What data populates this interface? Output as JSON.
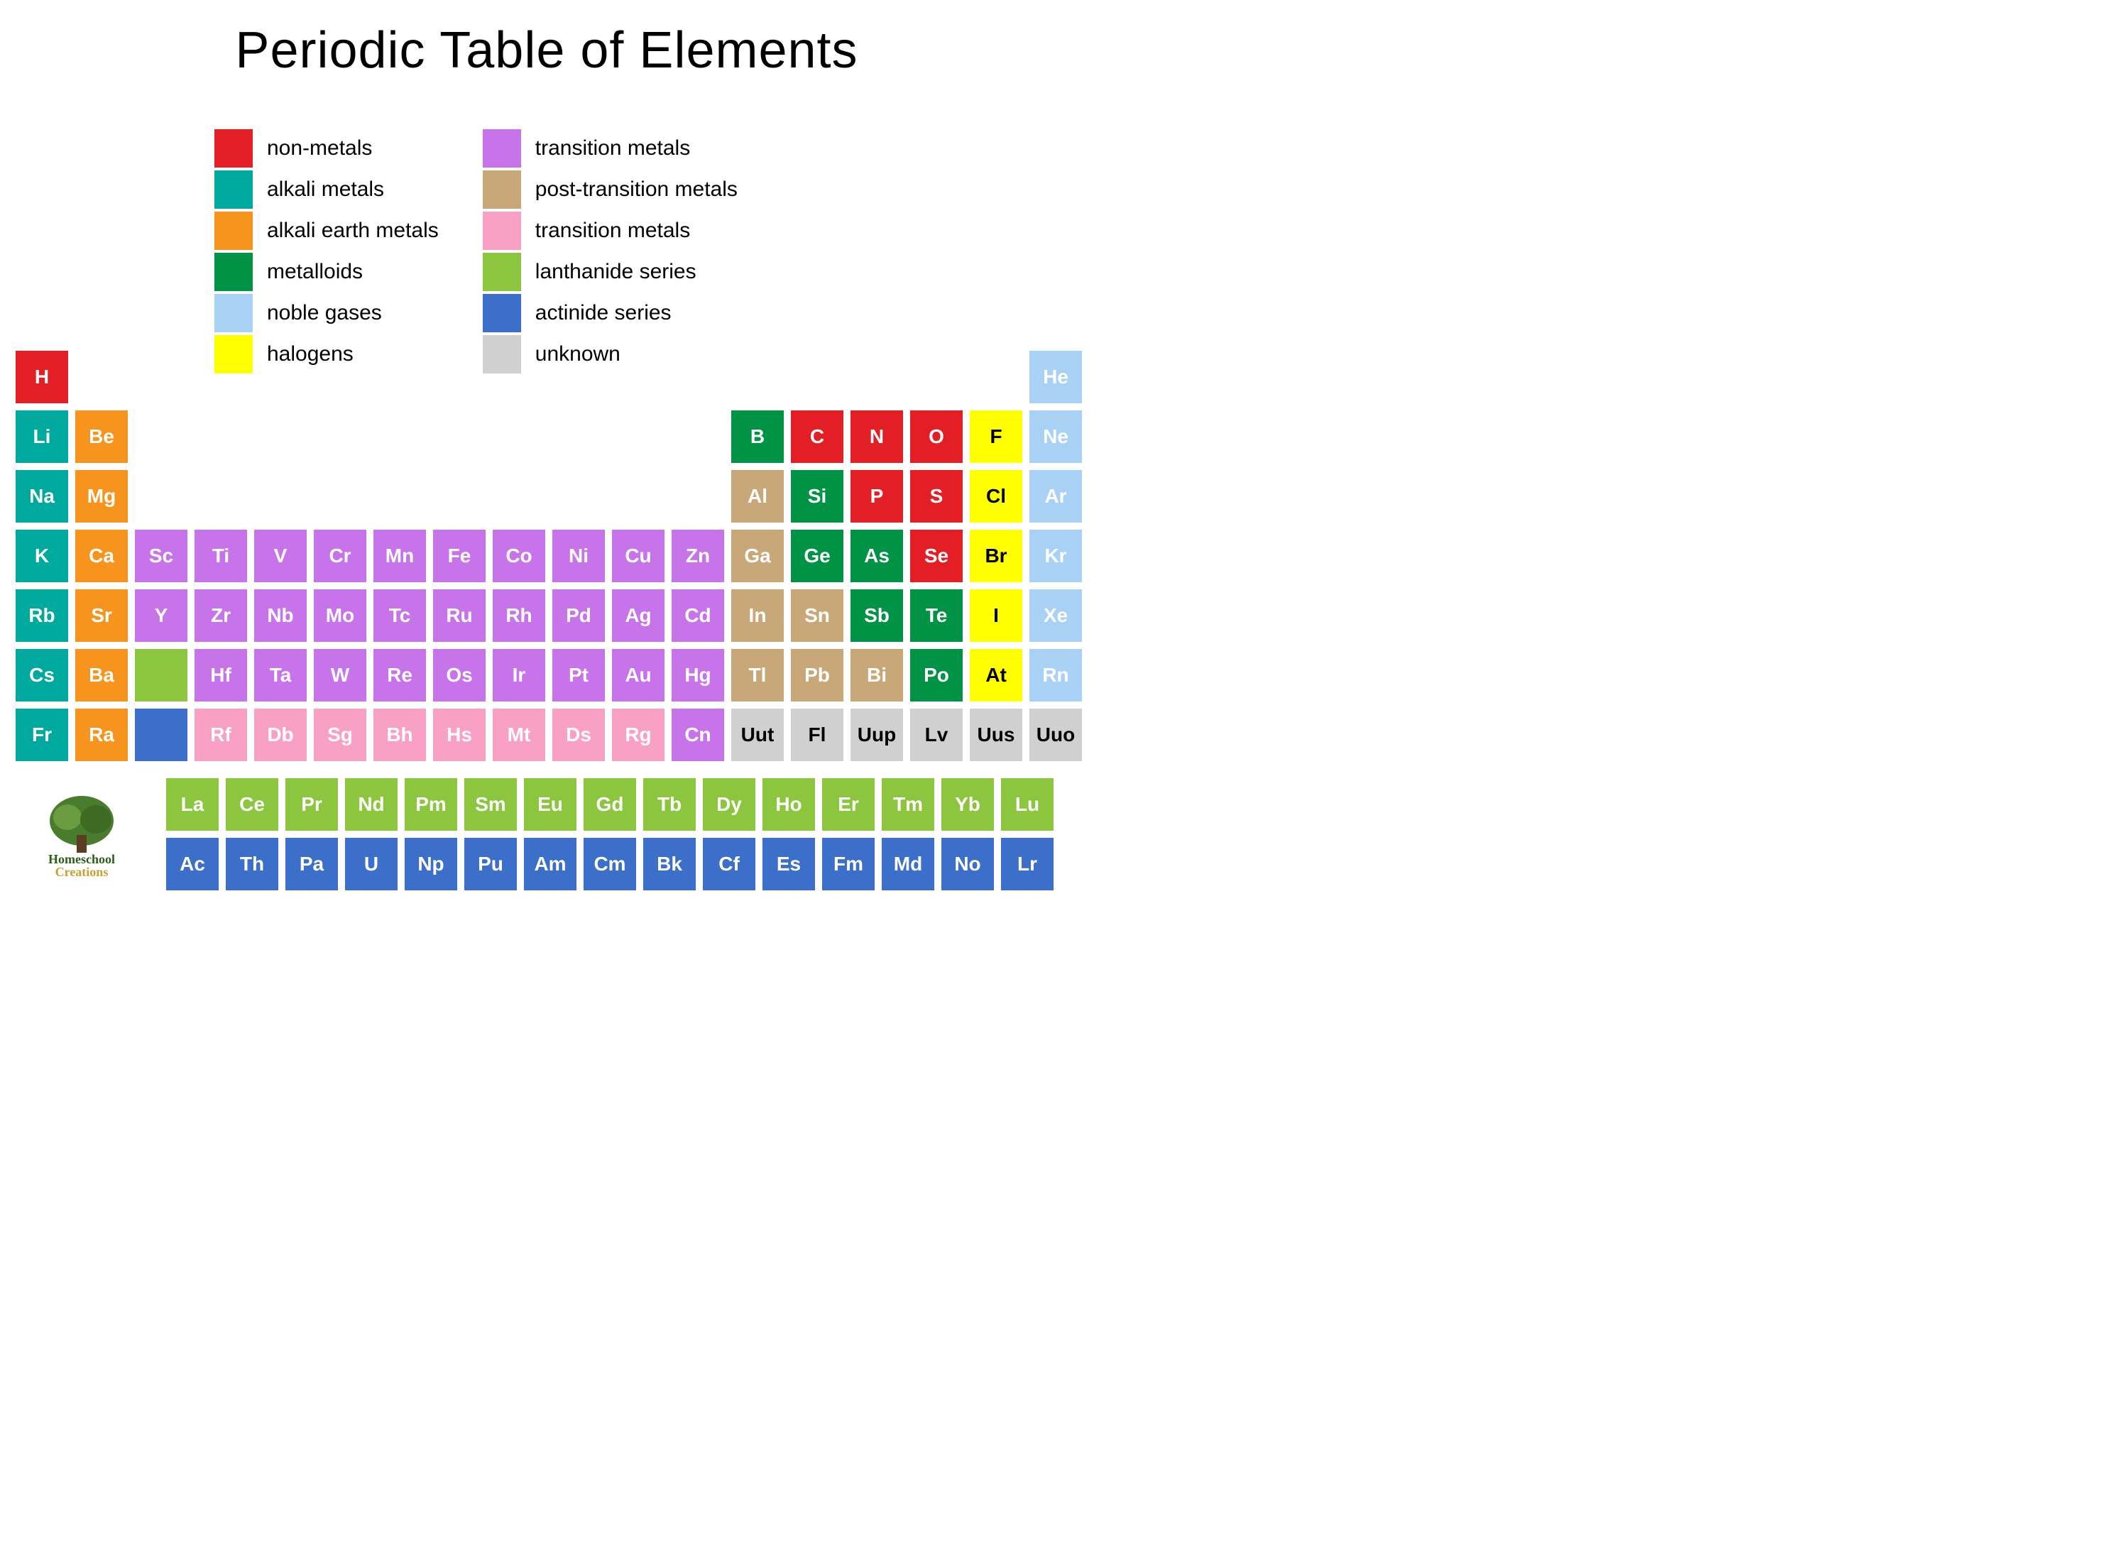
{
  "title": "Periodic Table of Elements",
  "categories": {
    "nonmetal": {
      "color": "#e31e24",
      "text": "light",
      "label": "non-metals"
    },
    "alkali": {
      "color": "#00a99d",
      "text": "light",
      "label": "alkali metals"
    },
    "alkaline": {
      "color": "#f7941d",
      "text": "light",
      "label": "alkali earth metals"
    },
    "metalloid": {
      "color": "#009245",
      "text": "light",
      "label": "metalloids"
    },
    "noble": {
      "color": "#a9d0f5",
      "text": "light",
      "label": "noble gases"
    },
    "halogen": {
      "color": "#ffff00",
      "text": "dark",
      "label": "halogens"
    },
    "transition": {
      "color": "#c774ea",
      "text": "light",
      "label": "transition metals"
    },
    "posttransition": {
      "color": "#c8a878",
      "text": "light",
      "label": "post-transition metals"
    },
    "lanthanide": {
      "color": "#8cc63f",
      "text": "light",
      "label": "lanthanide series"
    },
    "actinide": {
      "color": "#3b6fc9",
      "text": "light",
      "label": "actinide series"
    },
    "unknown": {
      "color": "#d0d0d0",
      "text": "dark",
      "label": "unknown"
    },
    "trans_pink": {
      "color": "#f8a1c4",
      "text": "light",
      "label": ""
    }
  },
  "legend_cols": [
    [
      "nonmetal",
      "alkali",
      "alkaline",
      "metalloid",
      "noble",
      "halogen"
    ],
    [
      "transition",
      "posttransition",
      "trans_pink",
      "lanthanide",
      "actinide",
      "unknown"
    ]
  ],
  "legend_alt_labels": {
    "trans_pink": "transition metals",
    "posttransition": "post-transition metals"
  },
  "main": [
    {
      "r": 1,
      "c": 1,
      "s": "H",
      "cat": "nonmetal"
    },
    {
      "r": 1,
      "c": 18,
      "s": "He",
      "cat": "noble"
    },
    {
      "r": 2,
      "c": 1,
      "s": "Li",
      "cat": "alkali"
    },
    {
      "r": 2,
      "c": 2,
      "s": "Be",
      "cat": "alkaline"
    },
    {
      "r": 2,
      "c": 13,
      "s": "B",
      "cat": "metalloid"
    },
    {
      "r": 2,
      "c": 14,
      "s": "C",
      "cat": "nonmetal"
    },
    {
      "r": 2,
      "c": 15,
      "s": "N",
      "cat": "nonmetal"
    },
    {
      "r": 2,
      "c": 16,
      "s": "O",
      "cat": "nonmetal"
    },
    {
      "r": 2,
      "c": 17,
      "s": "F",
      "cat": "halogen"
    },
    {
      "r": 2,
      "c": 18,
      "s": "Ne",
      "cat": "noble"
    },
    {
      "r": 3,
      "c": 1,
      "s": "Na",
      "cat": "alkali"
    },
    {
      "r": 3,
      "c": 2,
      "s": "Mg",
      "cat": "alkaline"
    },
    {
      "r": 3,
      "c": 13,
      "s": "Al",
      "cat": "posttransition"
    },
    {
      "r": 3,
      "c": 14,
      "s": "Si",
      "cat": "metalloid"
    },
    {
      "r": 3,
      "c": 15,
      "s": "P",
      "cat": "nonmetal"
    },
    {
      "r": 3,
      "c": 16,
      "s": "S",
      "cat": "nonmetal"
    },
    {
      "r": 3,
      "c": 17,
      "s": "Cl",
      "cat": "halogen"
    },
    {
      "r": 3,
      "c": 18,
      "s": "Ar",
      "cat": "noble"
    },
    {
      "r": 4,
      "c": 1,
      "s": "K",
      "cat": "alkali"
    },
    {
      "r": 4,
      "c": 2,
      "s": "Ca",
      "cat": "alkaline"
    },
    {
      "r": 4,
      "c": 3,
      "s": "Sc",
      "cat": "transition"
    },
    {
      "r": 4,
      "c": 4,
      "s": "Ti",
      "cat": "transition"
    },
    {
      "r": 4,
      "c": 5,
      "s": "V",
      "cat": "transition"
    },
    {
      "r": 4,
      "c": 6,
      "s": "Cr",
      "cat": "transition"
    },
    {
      "r": 4,
      "c": 7,
      "s": "Mn",
      "cat": "transition"
    },
    {
      "r": 4,
      "c": 8,
      "s": "Fe",
      "cat": "transition"
    },
    {
      "r": 4,
      "c": 9,
      "s": "Co",
      "cat": "transition"
    },
    {
      "r": 4,
      "c": 10,
      "s": "Ni",
      "cat": "transition"
    },
    {
      "r": 4,
      "c": 11,
      "s": "Cu",
      "cat": "transition"
    },
    {
      "r": 4,
      "c": 12,
      "s": "Zn",
      "cat": "transition"
    },
    {
      "r": 4,
      "c": 13,
      "s": "Ga",
      "cat": "posttransition"
    },
    {
      "r": 4,
      "c": 14,
      "s": "Ge",
      "cat": "metalloid"
    },
    {
      "r": 4,
      "c": 15,
      "s": "As",
      "cat": "metalloid"
    },
    {
      "r": 4,
      "c": 16,
      "s": "Se",
      "cat": "nonmetal"
    },
    {
      "r": 4,
      "c": 17,
      "s": "Br",
      "cat": "halogen"
    },
    {
      "r": 4,
      "c": 18,
      "s": "Kr",
      "cat": "noble"
    },
    {
      "r": 5,
      "c": 1,
      "s": "Rb",
      "cat": "alkali"
    },
    {
      "r": 5,
      "c": 2,
      "s": "Sr",
      "cat": "alkaline"
    },
    {
      "r": 5,
      "c": 3,
      "s": "Y",
      "cat": "transition"
    },
    {
      "r": 5,
      "c": 4,
      "s": "Zr",
      "cat": "transition"
    },
    {
      "r": 5,
      "c": 5,
      "s": "Nb",
      "cat": "transition"
    },
    {
      "r": 5,
      "c": 6,
      "s": "Mo",
      "cat": "transition"
    },
    {
      "r": 5,
      "c": 7,
      "s": "Tc",
      "cat": "transition"
    },
    {
      "r": 5,
      "c": 8,
      "s": "Ru",
      "cat": "transition"
    },
    {
      "r": 5,
      "c": 9,
      "s": "Rh",
      "cat": "transition"
    },
    {
      "r": 5,
      "c": 10,
      "s": "Pd",
      "cat": "transition"
    },
    {
      "r": 5,
      "c": 11,
      "s": "Ag",
      "cat": "transition"
    },
    {
      "r": 5,
      "c": 12,
      "s": "Cd",
      "cat": "transition"
    },
    {
      "r": 5,
      "c": 13,
      "s": "In",
      "cat": "posttransition"
    },
    {
      "r": 5,
      "c": 14,
      "s": "Sn",
      "cat": "posttransition"
    },
    {
      "r": 5,
      "c": 15,
      "s": "Sb",
      "cat": "metalloid"
    },
    {
      "r": 5,
      "c": 16,
      "s": "Te",
      "cat": "metalloid"
    },
    {
      "r": 5,
      "c": 17,
      "s": "I",
      "cat": "halogen"
    },
    {
      "r": 5,
      "c": 18,
      "s": "Xe",
      "cat": "noble"
    },
    {
      "r": 6,
      "c": 1,
      "s": "Cs",
      "cat": "alkali"
    },
    {
      "r": 6,
      "c": 2,
      "s": "Ba",
      "cat": "alkaline"
    },
    {
      "r": 6,
      "c": 3,
      "s": "",
      "cat": "lanthanide"
    },
    {
      "r": 6,
      "c": 4,
      "s": "Hf",
      "cat": "transition"
    },
    {
      "r": 6,
      "c": 5,
      "s": "Ta",
      "cat": "transition"
    },
    {
      "r": 6,
      "c": 6,
      "s": "W",
      "cat": "transition"
    },
    {
      "r": 6,
      "c": 7,
      "s": "Re",
      "cat": "transition"
    },
    {
      "r": 6,
      "c": 8,
      "s": "Os",
      "cat": "transition"
    },
    {
      "r": 6,
      "c": 9,
      "s": "Ir",
      "cat": "transition"
    },
    {
      "r": 6,
      "c": 10,
      "s": "Pt",
      "cat": "transition"
    },
    {
      "r": 6,
      "c": 11,
      "s": "Au",
      "cat": "transition"
    },
    {
      "r": 6,
      "c": 12,
      "s": "Hg",
      "cat": "transition"
    },
    {
      "r": 6,
      "c": 13,
      "s": "Tl",
      "cat": "posttransition"
    },
    {
      "r": 6,
      "c": 14,
      "s": "Pb",
      "cat": "posttransition"
    },
    {
      "r": 6,
      "c": 15,
      "s": "Bi",
      "cat": "posttransition"
    },
    {
      "r": 6,
      "c": 16,
      "s": "Po",
      "cat": "metalloid"
    },
    {
      "r": 6,
      "c": 17,
      "s": "At",
      "cat": "halogen"
    },
    {
      "r": 6,
      "c": 18,
      "s": "Rn",
      "cat": "noble"
    },
    {
      "r": 7,
      "c": 1,
      "s": "Fr",
      "cat": "alkali"
    },
    {
      "r": 7,
      "c": 2,
      "s": "Ra",
      "cat": "alkaline"
    },
    {
      "r": 7,
      "c": 3,
      "s": "",
      "cat": "actinide"
    },
    {
      "r": 7,
      "c": 4,
      "s": "Rf",
      "cat": "trans_pink"
    },
    {
      "r": 7,
      "c": 5,
      "s": "Db",
      "cat": "trans_pink"
    },
    {
      "r": 7,
      "c": 6,
      "s": "Sg",
      "cat": "trans_pink"
    },
    {
      "r": 7,
      "c": 7,
      "s": "Bh",
      "cat": "trans_pink"
    },
    {
      "r": 7,
      "c": 8,
      "s": "Hs",
      "cat": "trans_pink"
    },
    {
      "r": 7,
      "c": 9,
      "s": "Mt",
      "cat": "trans_pink"
    },
    {
      "r": 7,
      "c": 10,
      "s": "Ds",
      "cat": "trans_pink"
    },
    {
      "r": 7,
      "c": 11,
      "s": "Rg",
      "cat": "trans_pink"
    },
    {
      "r": 7,
      "c": 12,
      "s": "Cn",
      "cat": "transition"
    },
    {
      "r": 7,
      "c": 13,
      "s": "Uut",
      "cat": "unknown"
    },
    {
      "r": 7,
      "c": 14,
      "s": "Fl",
      "cat": "unknown"
    },
    {
      "r": 7,
      "c": 15,
      "s": "Uup",
      "cat": "unknown"
    },
    {
      "r": 7,
      "c": 16,
      "s": "Lv",
      "cat": "unknown"
    },
    {
      "r": 7,
      "c": 17,
      "s": "Uus",
      "cat": "unknown"
    },
    {
      "r": 7,
      "c": 18,
      "s": "Uuo",
      "cat": "unknown"
    }
  ],
  "fblock": [
    [
      {
        "s": "La"
      },
      {
        "s": "Ce"
      },
      {
        "s": "Pr"
      },
      {
        "s": "Nd"
      },
      {
        "s": "Pm"
      },
      {
        "s": "Sm"
      },
      {
        "s": "Eu"
      },
      {
        "s": "Gd"
      },
      {
        "s": "Tb"
      },
      {
        "s": "Dy"
      },
      {
        "s": "Ho"
      },
      {
        "s": "Er"
      },
      {
        "s": "Tm"
      },
      {
        "s": "Yb"
      },
      {
        "s": "Lu"
      }
    ],
    [
      {
        "s": "Ac"
      },
      {
        "s": "Th"
      },
      {
        "s": "Pa"
      },
      {
        "s": "U"
      },
      {
        "s": "Np"
      },
      {
        "s": "Pu"
      },
      {
        "s": "Am"
      },
      {
        "s": "Cm"
      },
      {
        "s": "Bk"
      },
      {
        "s": "Cf"
      },
      {
        "s": "Es"
      },
      {
        "s": "Fm"
      },
      {
        "s": "Md"
      },
      {
        "s": "No"
      },
      {
        "s": "Lr"
      }
    ]
  ],
  "fblock_cats": [
    "lanthanide",
    "actinide"
  ],
  "logo_text": "Homeschool Creations"
}
